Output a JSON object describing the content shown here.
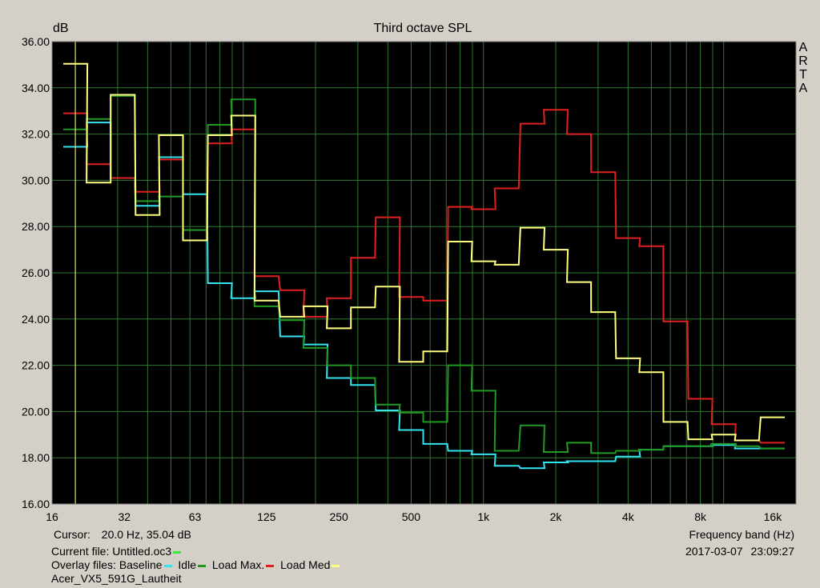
{
  "app": {
    "title": "Third octave SPL",
    "logo_letters": [
      "A",
      "R",
      "T",
      "A"
    ],
    "y_unit": "dB",
    "x_axis_label": "Frequency band (Hz)",
    "cursor_label": "Cursor:",
    "cursor_value": "20.0 Hz, 35.04 dB",
    "current_file_label": "Current file:",
    "current_file_name": "Untitled.oc3",
    "overlay_label": "Overlay files:",
    "overlay_names": [
      "Baseline",
      "Idle",
      "Load Max.",
      "Load Med"
    ],
    "overlay_colors": [
      "#33e4f0",
      "#229922",
      "#e02020",
      "#ffff80"
    ],
    "current_file_color": "#33ee33",
    "file_name": "Acer_VX5_591G_Lautheit",
    "date": "2017-03-07",
    "time": "23:09:27"
  },
  "chart_data": {
    "type": "line",
    "title": "Third octave SPL",
    "ylabel": "dB",
    "xlabel": "Frequency band (Hz)",
    "x_scale": "log",
    "xlim": [
      16,
      20000
    ],
    "ylim": [
      16,
      36
    ],
    "y_ticks": [
      "16.00",
      "18.00",
      "20.00",
      "22.00",
      "24.00",
      "26.00",
      "28.00",
      "30.00",
      "32.00",
      "34.00",
      "36.00"
    ],
    "x_ticks": [
      "16",
      "32",
      "63",
      "125",
      "250",
      "500",
      "1k",
      "2k",
      "4k",
      "8k",
      "16k"
    ],
    "x_tick_values": [
      16,
      32,
      63,
      125,
      250,
      500,
      1000,
      2000,
      4000,
      8000,
      16000
    ],
    "band_centers": [
      20,
      25,
      31.5,
      40,
      50,
      63,
      80,
      100,
      125,
      160,
      200,
      250,
      315,
      400,
      500,
      630,
      800,
      1000,
      1250,
      1600,
      2000,
      2500,
      3150,
      4000,
      5000,
      6300,
      8000,
      10000,
      12500,
      16000
    ],
    "cursor_x": 20,
    "grid": true,
    "series": [
      {
        "name": "Baseline",
        "color": "#33e4f0",
        "values": [
          31.45,
          32.5,
          30.1,
          28.9,
          31.0,
          29.4,
          25.55,
          24.9,
          25.2,
          23.25,
          22.9,
          21.45,
          21.15,
          20.05,
          19.2,
          18.6,
          18.3,
          18.15,
          17.65,
          17.55,
          17.8,
          17.85,
          17.85,
          18.05,
          18.35,
          18.5,
          18.5,
          18.55,
          18.4,
          18.4
        ]
      },
      {
        "name": "Idle",
        "color": "#229922",
        "values": [
          32.2,
          32.65,
          33.65,
          29.1,
          29.3,
          27.85,
          32.4,
          33.5,
          24.55,
          23.95,
          22.75,
          22.0,
          21.45,
          20.3,
          19.95,
          19.55,
          22.0,
          20.9,
          18.3,
          19.4,
          18.25,
          18.65,
          18.2,
          18.3,
          18.35,
          18.5,
          18.5,
          18.6,
          18.5,
          18.4
        ]
      },
      {
        "name": "Load Max.",
        "color": "#e02020",
        "values": [
          32.9,
          30.7,
          30.1,
          29.5,
          30.9,
          27.4,
          31.6,
          32.2,
          25.85,
          25.25,
          24.1,
          24.9,
          26.65,
          28.4,
          24.95,
          24.8,
          28.85,
          28.75,
          29.65,
          32.45,
          33.05,
          32.0,
          30.35,
          27.5,
          27.15,
          23.9,
          20.55,
          19.45,
          18.75,
          18.65
        ]
      },
      {
        "name": "Load Med",
        "color": "#ffff80",
        "values": [
          35.04,
          29.9,
          33.7,
          28.5,
          31.95,
          27.4,
          31.95,
          32.8,
          24.8,
          24.1,
          24.55,
          23.6,
          24.5,
          25.4,
          22.15,
          22.6,
          27.35,
          26.5,
          26.35,
          27.95,
          27.0,
          25.6,
          24.3,
          22.3,
          21.7,
          19.55,
          18.8,
          19.0,
          18.75,
          19.75
        ]
      }
    ]
  }
}
